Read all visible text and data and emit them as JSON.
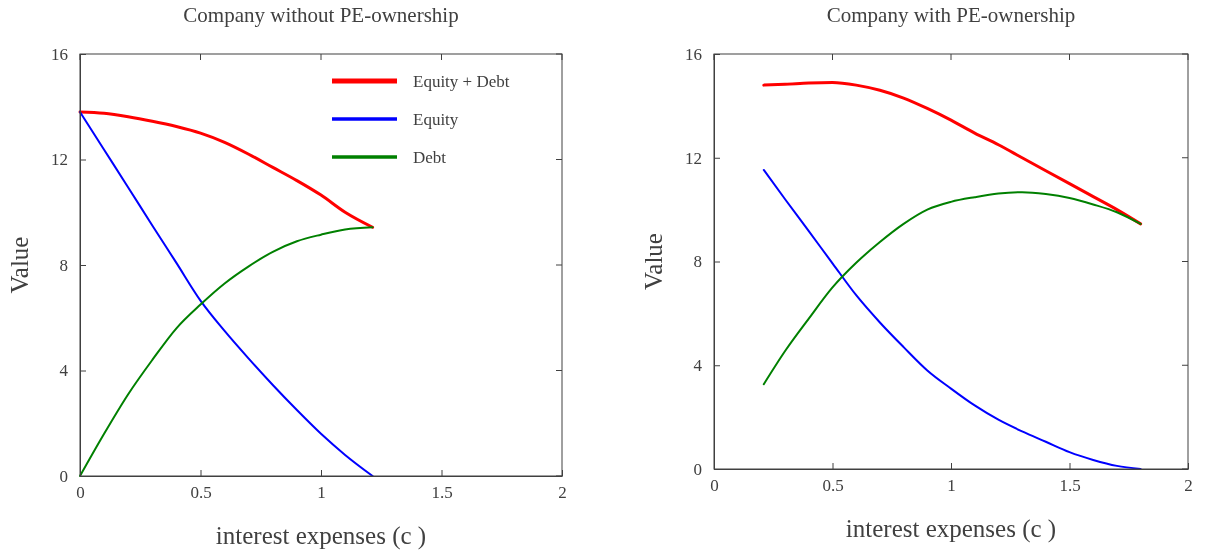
{
  "chart_data": [
    {
      "type": "line",
      "title": "Company without PE-ownership",
      "xlabel": "interest expenses (c )",
      "ylabel": "Value",
      "x": [
        0,
        0.1,
        0.2,
        0.3,
        0.4,
        0.5,
        0.6,
        0.7,
        0.8,
        0.9,
        1.0,
        1.1,
        1.214
      ],
      "series": [
        {
          "name": "Equity + Debt",
          "color": "#ff0000",
          "values": [
            13.8,
            13.75,
            13.62,
            13.45,
            13.25,
            13.0,
            12.65,
            12.2,
            11.7,
            11.2,
            10.65,
            10.0,
            9.43
          ]
        },
        {
          "name": "Equity",
          "color": "#0000ff",
          "values": [
            13.8,
            12.37,
            10.94,
            9.5,
            8.08,
            6.65,
            5.5,
            4.45,
            3.45,
            2.5,
            1.6,
            0.8,
            0
          ]
        },
        {
          "name": "Debt",
          "color": "#008000",
          "values": [
            0,
            1.6,
            3.1,
            4.4,
            5.6,
            6.5,
            7.3,
            7.95,
            8.5,
            8.9,
            9.15,
            9.35,
            9.43
          ]
        }
      ],
      "xlim": [
        0,
        2
      ],
      "xticks": [
        0,
        0.5,
        1,
        1.5,
        2
      ],
      "ylim": [
        0,
        16
      ],
      "yticks": [
        0,
        4,
        8,
        12,
        16
      ],
      "grid": false,
      "legend": "top right"
    },
    {
      "type": "line",
      "title": "Company with PE-ownership",
      "xlabel": "interest expenses (c )",
      "ylabel": "Value",
      "x": [
        0.21,
        0.3,
        0.4,
        0.5,
        0.6,
        0.7,
        0.8,
        0.9,
        1.0,
        1.1,
        1.2,
        1.3,
        1.4,
        1.5,
        1.6,
        1.7,
        1.8
      ],
      "series": [
        {
          "color": "#ff0000",
          "values": [
            14.8,
            14.83,
            14.88,
            14.9,
            14.8,
            14.6,
            14.3,
            13.9,
            13.45,
            12.95,
            12.5,
            12.0,
            11.5,
            11.0,
            10.5,
            10.0,
            9.45
          ]
        },
        {
          "color": "#0000ff",
          "values": [
            11.53,
            10.4,
            9.17,
            7.93,
            6.7,
            5.65,
            4.7,
            3.8,
            3.1,
            2.45,
            1.9,
            1.45,
            1.05,
            0.65,
            0.35,
            0.12,
            0
          ]
        },
        {
          "color": "#008000",
          "values": [
            3.27,
            4.55,
            5.8,
            7.0,
            7.95,
            8.75,
            9.45,
            10.0,
            10.3,
            10.48,
            10.62,
            10.67,
            10.6,
            10.45,
            10.2,
            9.9,
            9.45
          ]
        }
      ],
      "xlim": [
        0,
        2
      ],
      "xticks": [
        0,
        0.5,
        1,
        1.5,
        2
      ],
      "ylim": [
        0,
        16
      ],
      "yticks": [
        0,
        4,
        8,
        12,
        16
      ],
      "grid": false,
      "legend": false
    }
  ]
}
